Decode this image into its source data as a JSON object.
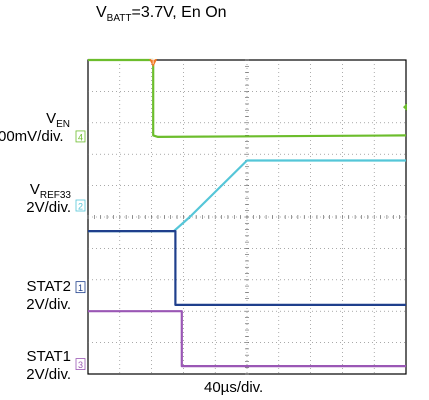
{
  "title": {
    "prefix": "V",
    "sub": "BATT",
    "rest": "=3.7V, En On"
  },
  "timebase": "40µs/div.",
  "channels": [
    {
      "id": "ch4",
      "name_main": "V",
      "name_sub": "EN",
      "scale": "00mV/div.",
      "tag": "4",
      "color": "#6cbd2c"
    },
    {
      "id": "ch2",
      "name_main": "V",
      "name_sub": "REF33",
      "scale": "2V/div.",
      "tag": "2",
      "color": "#55c6d8"
    },
    {
      "id": "ch1",
      "name_main": "STAT2",
      "name_sub": "",
      "scale": "2V/div.",
      "tag": "1",
      "color": "#1f3f8c"
    },
    {
      "id": "ch3",
      "name_main": "STAT1",
      "name_sub": "",
      "scale": "2V/div.",
      "tag": "3",
      "color": "#9a57b5"
    }
  ],
  "trigger_marker": "T",
  "chart_data": {
    "type": "line",
    "x_unit": "div",
    "xlim": [
      0,
      10
    ],
    "grid": true,
    "series": [
      {
        "id": "ch4",
        "color": "#6cbd2c",
        "x": [
          0,
          2.05,
          2.05,
          2.2,
          10
        ],
        "y": [
          10,
          10,
          7.6,
          7.55,
          7.6
        ]
      },
      {
        "id": "ch2",
        "color": "#55c6d8",
        "x": [
          0,
          2.7,
          3.2,
          5.0,
          10
        ],
        "y": [
          4.55,
          4.55,
          5.0,
          6.8,
          6.8
        ]
      },
      {
        "id": "ch1",
        "color": "#1f3f8c",
        "x": [
          0,
          2.75,
          2.75,
          2.85,
          10
        ],
        "y": [
          4.55,
          4.55,
          2.2,
          2.2,
          2.2
        ]
      },
      {
        "id": "ch3",
        "color": "#9a57b5",
        "x": [
          0,
          2.95,
          2.95,
          3.05,
          10
        ],
        "y": [
          2.0,
          2.0,
          0.25,
          0.25,
          0.25
        ]
      }
    ]
  }
}
